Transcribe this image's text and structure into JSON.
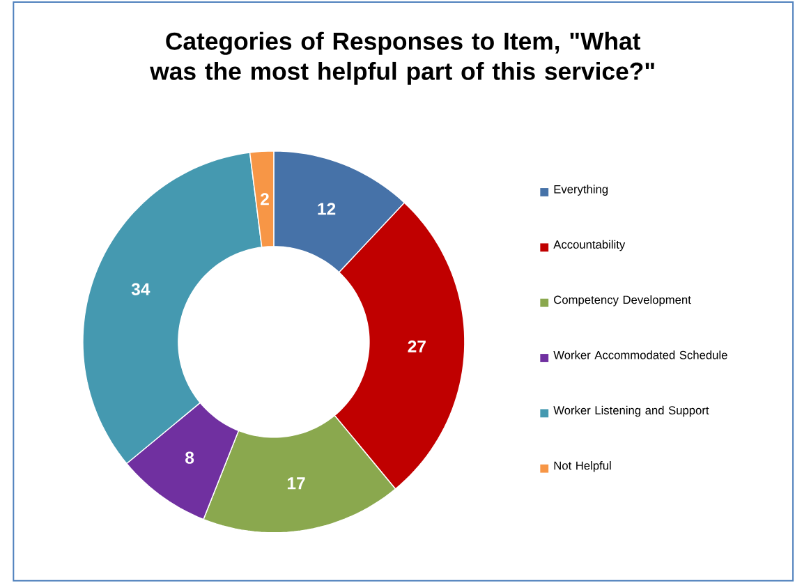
{
  "chart_data": {
    "type": "donut",
    "title": "Categories of Responses to Item, \"What was the most helpful part of this service?\"",
    "categories": [
      "Everything",
      "Accountability",
      "Competency Development",
      "Worker Accommodated Schedule",
      "Worker Listening and Support",
      "Not Helpful"
    ],
    "values": [
      12,
      27,
      17,
      8,
      34,
      2
    ],
    "colors": [
      "#4672A8",
      "#C00000",
      "#8AA84E",
      "#7030A0",
      "#4599B0",
      "#F79646"
    ],
    "data_labels": true,
    "legend": "right"
  }
}
